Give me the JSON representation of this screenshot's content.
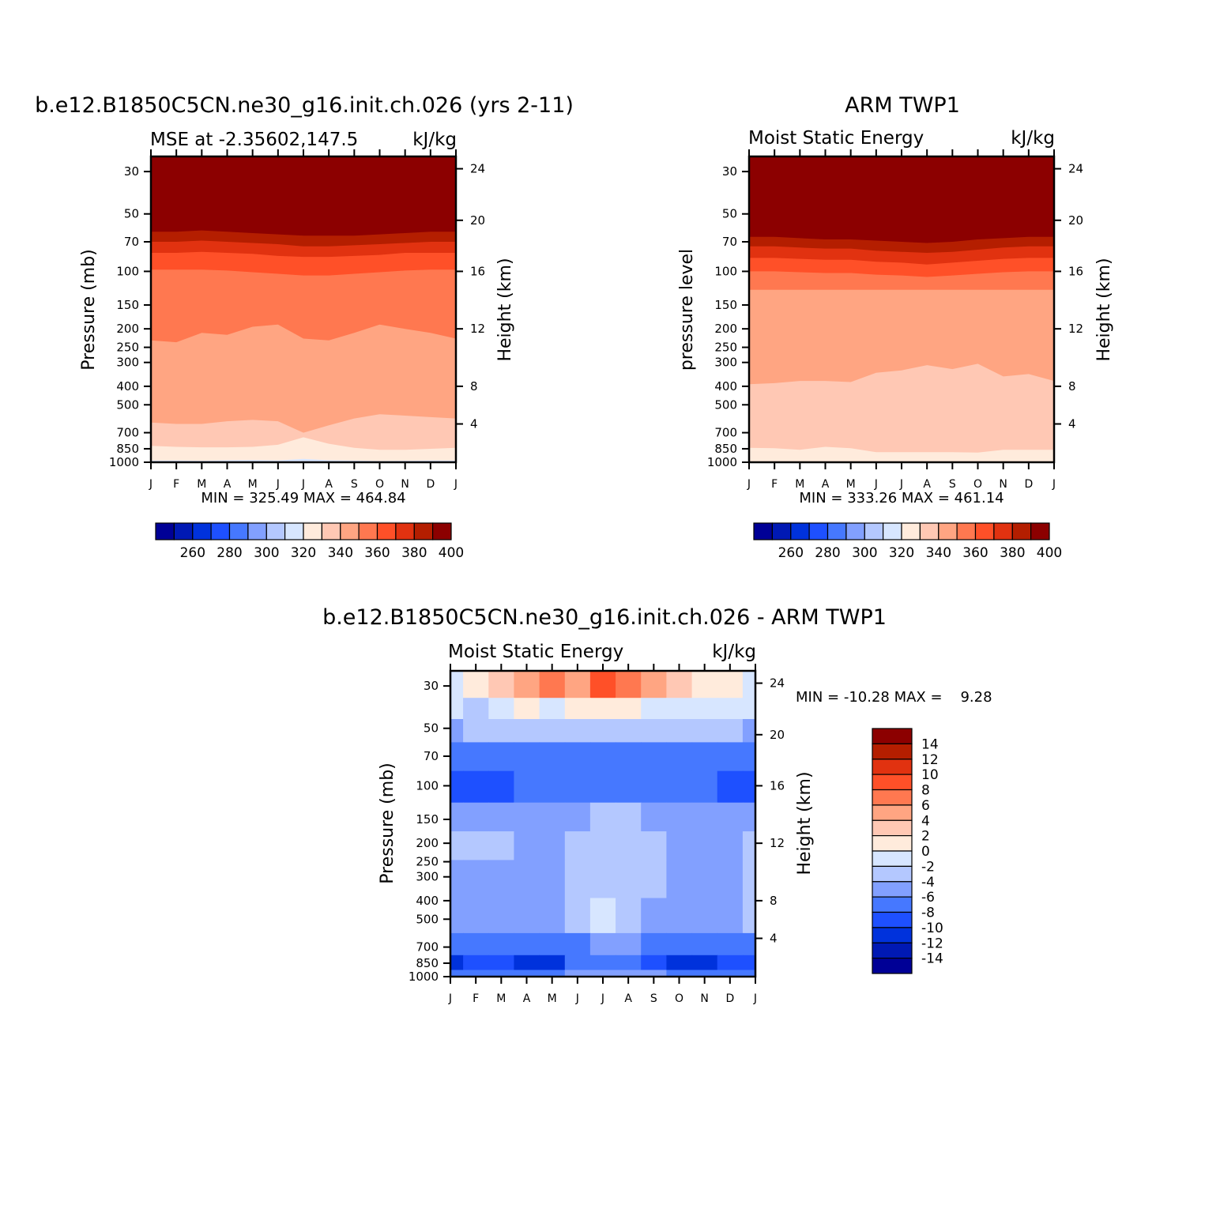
{
  "chart_data": [
    {
      "type": "heatmap",
      "title": "b.e12.B1850C5CN.ne30_g16.init.ch.026 (yrs 2-11)",
      "subtitle_left": "MSE at -2.35602,147.5",
      "subtitle_right": "kJ/kg",
      "ylabel": "Pressure (mb)",
      "y2label": "Height (km)",
      "stats": "MIN = 325.49 MAX = 464.84",
      "min": 325.49,
      "max": 464.84,
      "x_categories": [
        "J",
        "F",
        "M",
        "A",
        "M",
        "J",
        "J",
        "A",
        "S",
        "O",
        "N",
        "D",
        "J"
      ],
      "y_ticks": [
        "30",
        "50",
        "70",
        "100",
        "150",
        "200",
        "250",
        "300",
        "400",
        "500",
        "700",
        "850",
        "1000"
      ],
      "y2_ticks": [
        "24",
        "20",
        "16",
        "12",
        "8",
        "4"
      ],
      "colorbar_labels": [
        "260",
        "280",
        "300",
        "320",
        "340",
        "360",
        "380",
        "400"
      ],
      "contour_levels_kJ_per_kg": [
        400,
        390,
        380,
        370,
        360,
        350,
        340,
        330,
        320
      ],
      "level_top_pressure_mb": {
        "400": [
          56,
          56,
          55,
          56,
          57,
          58,
          59,
          59,
          59,
          58,
          57,
          56,
          56
        ],
        "390": [
          62,
          62,
          61,
          62,
          63,
          64,
          65,
          65,
          65,
          64,
          63,
          62,
          62
        ],
        "380": [
          70,
          70,
          69,
          70,
          71,
          72,
          74,
          74,
          73,
          72,
          71,
          70,
          70
        ],
        "370": [
          80,
          80,
          79,
          80,
          81,
          83,
          84,
          84,
          83,
          82,
          80,
          80,
          80
        ],
        "360": [
          98,
          98,
          98,
          99,
          101,
          103,
          105,
          105,
          103,
          101,
          99,
          98,
          98
        ],
        "350": [
          230,
          235,
          210,
          215,
          195,
          190,
          225,
          230,
          210,
          190,
          200,
          210,
          225
        ],
        "340": [
          620,
          630,
          630,
          610,
          600,
          610,
          700,
          640,
          590,
          560,
          570,
          580,
          590
        ],
        "330": [
          820,
          830,
          835,
          835,
          830,
          810,
          740,
          800,
          840,
          860,
          860,
          850,
          840
        ],
        "320": [
          980,
          978,
          982,
          976,
          974,
          978,
          960,
          976,
          980,
          985,
          982,
          978,
          980
        ]
      }
    },
    {
      "type": "heatmap",
      "title": "ARM TWP1",
      "subtitle_left": "Moist Static Energy",
      "subtitle_right": "kJ/kg",
      "ylabel": "pressure level",
      "y2label": "Height (km)",
      "stats": "MIN = 333.26 MAX = 461.14",
      "min": 333.26,
      "max": 461.14,
      "x_categories": [
        "J",
        "F",
        "M",
        "A",
        "M",
        "J",
        "J",
        "A",
        "S",
        "O",
        "N",
        "D",
        "J"
      ],
      "y_ticks": [
        "30",
        "50",
        "70",
        "100",
        "150",
        "200",
        "250",
        "300",
        "400",
        "500",
        "700",
        "850",
        "1000"
      ],
      "y2_ticks": [
        "24",
        "20",
        "16",
        "12",
        "8",
        "4"
      ],
      "colorbar_labels": [
        "260",
        "280",
        "300",
        "320",
        "340",
        "360",
        "380",
        "400"
      ],
      "contour_levels_kJ_per_kg": [
        400,
        390,
        380,
        370,
        360,
        350,
        340,
        330
      ],
      "level_top_pressure_mb": {
        "400": [
          60,
          60,
          61,
          62,
          62,
          63,
          64,
          66,
          64,
          62,
          61,
          60,
          60
        ],
        "390": [
          66,
          66,
          67,
          68,
          68,
          69,
          70,
          71,
          70,
          68,
          67,
          66,
          66
        ],
        "380": [
          74,
          74,
          75,
          76,
          76,
          78,
          79,
          80,
          79,
          77,
          75,
          74,
          74
        ],
        "370": [
          85,
          85,
          86,
          87,
          87,
          89,
          90,
          92,
          90,
          88,
          86,
          85,
          85
        ],
        "360": [
          100,
          100,
          101,
          102,
          102,
          104,
          105,
          107,
          105,
          103,
          101,
          100,
          100
        ],
        "350": [
          125,
          125,
          125,
          125,
          125,
          125,
          125,
          125,
          125,
          125,
          125,
          125,
          125
        ],
        "340": [
          390,
          385,
          375,
          375,
          380,
          340,
          330,
          310,
          325,
          305,
          355,
          345,
          375
        ],
        "330": [
          840,
          845,
          860,
          830,
          845,
          885,
          885,
          885,
          885,
          890,
          860,
          860,
          860
        ]
      }
    },
    {
      "type": "heatmap",
      "title": "b.e12.B1850C5CN.ne30_g16.init.ch.026 - ARM TWP1",
      "subtitle_left": "Moist Static Energy",
      "subtitle_right": "kJ/kg",
      "ylabel": "Pressure (mb)",
      "y2label": "Height (km)",
      "stats": "MIN = -10.28 MAX =    9.28",
      "min": -10.28,
      "max": 9.28,
      "x_categories": [
        "J",
        "F",
        "M",
        "A",
        "M",
        "J",
        "J",
        "A",
        "S",
        "O",
        "N",
        "D",
        "J"
      ],
      "y_ticks": [
        "30",
        "50",
        "70",
        "100",
        "150",
        "200",
        "250",
        "300",
        "400",
        "500",
        "700",
        "850",
        "1000"
      ],
      "y2_ticks": [
        "24",
        "20",
        "16",
        "12",
        "8",
        "4"
      ],
      "colorbar_labels": [
        "14",
        "12",
        "10",
        "8",
        "6",
        "4",
        "2",
        "0",
        "-2",
        "-4",
        "-6",
        "-8",
        "-10",
        "-12",
        "-14"
      ],
      "grid_pressure_mb": [
        30,
        40,
        50,
        70,
        100,
        150,
        200,
        300,
        500,
        700,
        850,
        1000
      ],
      "values": [
        [
          0,
          1,
          4,
          6,
          7,
          6,
          9,
          7,
          6,
          4,
          1,
          2,
          0
        ],
        [
          -1,
          -2,
          0,
          1,
          0,
          1,
          1,
          1,
          0,
          0,
          -1,
          -1,
          -1
        ],
        [
          -4,
          -3,
          -3,
          -3,
          -3,
          -3,
          -3,
          -3,
          -3,
          -3,
          -3,
          -3,
          -4
        ],
        [
          -6,
          -6,
          -6,
          -7,
          -7,
          -6,
          -6,
          -6,
          -6,
          -6,
          -6,
          -6,
          -6
        ],
        [
          -8,
          -9,
          -8,
          -7,
          -7,
          -7,
          -7,
          -7,
          -7,
          -7,
          -7,
          -8,
          -9
        ],
        [
          -5,
          -5,
          -5,
          -5,
          -5,
          -4,
          -3,
          -3,
          -4,
          -5,
          -5,
          -5,
          -5
        ],
        [
          -3,
          -3,
          -3,
          -4,
          -4,
          -3,
          -3,
          -3,
          -3,
          -4,
          -4,
          -4,
          -3
        ],
        [
          -4,
          -4,
          -4,
          -5,
          -5,
          -3,
          -3,
          -3,
          -3,
          -4,
          -5,
          -4,
          -3
        ],
        [
          -5,
          -5,
          -5,
          -5,
          -5,
          -3,
          -1,
          -2,
          -4,
          -5,
          -5,
          -4,
          -3
        ],
        [
          -7,
          -7,
          -7,
          -7,
          -7,
          -6,
          -5,
          -5,
          -6,
          -7,
          -7,
          -7,
          -7
        ],
        [
          -10,
          -9,
          -9,
          -10,
          -10,
          -7,
          -6,
          -6,
          -9,
          -10,
          -10,
          -9,
          -9
        ],
        [
          -6,
          -6,
          -6,
          -6,
          -6,
          -5,
          -5,
          -5,
          -5,
          -6,
          -6,
          -6,
          -6
        ]
      ]
    }
  ],
  "colors": {
    "seq": [
      "#000096",
      "#0019b4",
      "#0032dc",
      "#1e50ff",
      "#4678ff",
      "#82a0ff",
      "#b4c8ff",
      "#d7e6ff",
      "#ffebdc",
      "#ffc8b4",
      "#ffa582",
      "#ff7850",
      "#ff5028",
      "#e13210",
      "#b41e00",
      "#8c0000"
    ],
    "diff": [
      "#8c0000",
      "#b41e00",
      "#e13210",
      "#ff5028",
      "#ff7850",
      "#ffa582",
      "#ffc8b4",
      "#ffebdc",
      "#d7e6ff",
      "#b4c8ff",
      "#82a0ff",
      "#4678ff",
      "#1e50ff",
      "#0032dc",
      "#0019b4",
      "#000096"
    ]
  }
}
